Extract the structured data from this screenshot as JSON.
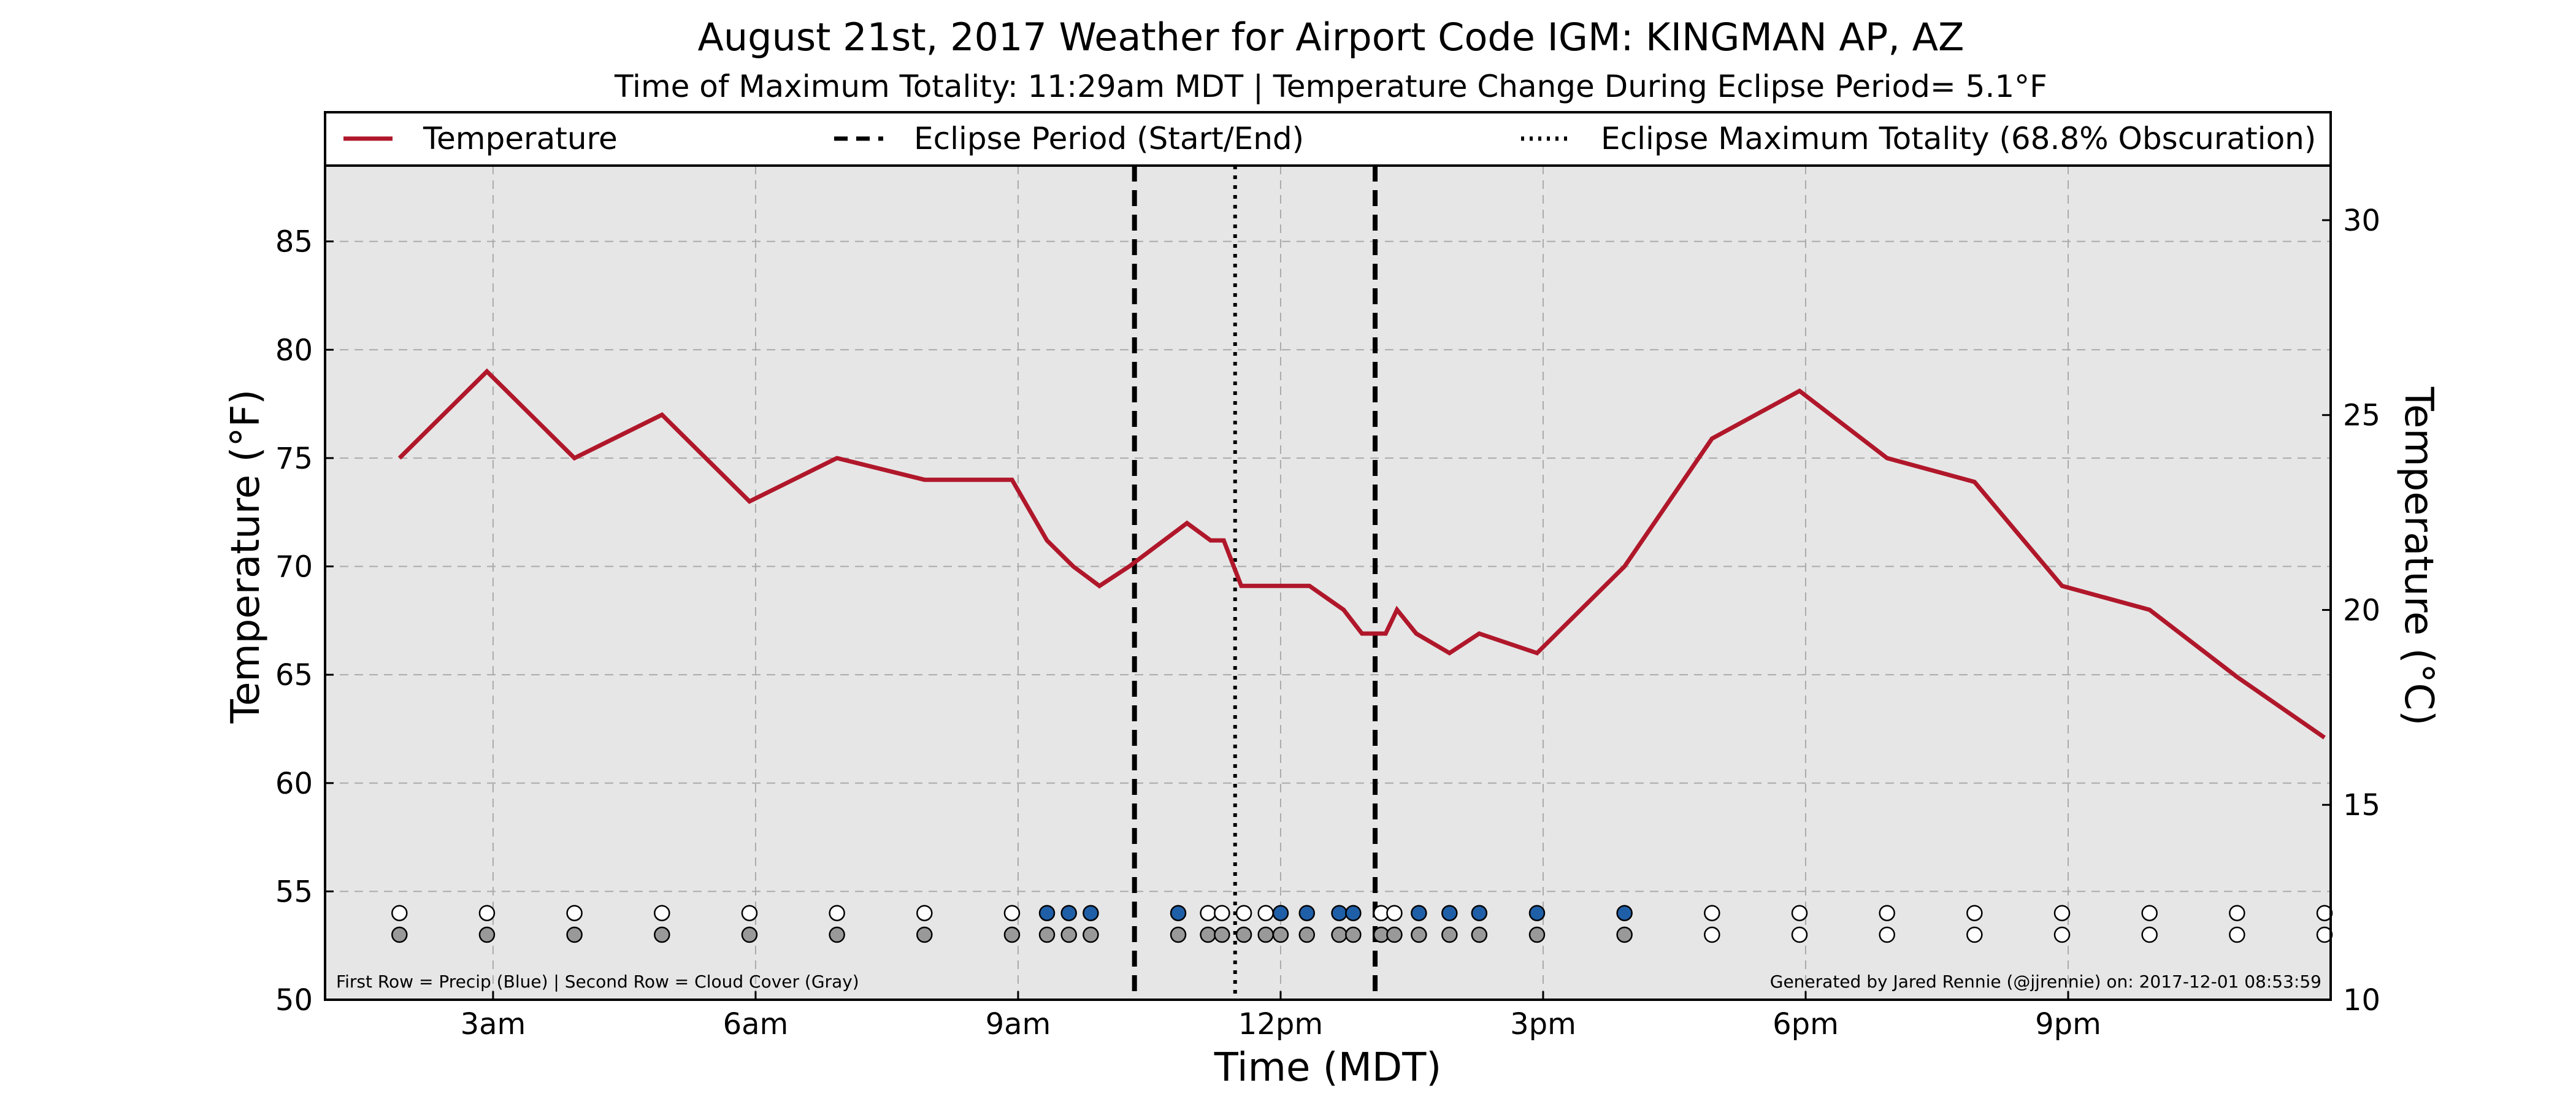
{
  "chart_data": {
    "type": "line",
    "title": "August 21st, 2017 Weather for Airport Code IGM: KINGMAN AP, AZ",
    "subtitle": "Time of Maximum Totality: 11:29am MDT | Temperature Change During Eclipse Period= 5.1°F",
    "xlabel": "Time (MDT)",
    "ylabel": "Temperature (°F)",
    "ylabel_right": "Temperature (°C)",
    "x_unit": "hours after midnight MDT",
    "xlim": [
      1.08,
      24.0
    ],
    "ylim": [
      50,
      88.5
    ],
    "ylim_right_c": [
      10,
      31.4
    ],
    "x_ticks": [
      {
        "x": 3,
        "label": "3am"
      },
      {
        "x": 6,
        "label": "6am"
      },
      {
        "x": 9,
        "label": "9am"
      },
      {
        "x": 12,
        "label": "12pm"
      },
      {
        "x": 15,
        "label": "3pm"
      },
      {
        "x": 18,
        "label": "6pm"
      },
      {
        "x": 21,
        "label": "9pm"
      }
    ],
    "y_ticks": [
      50,
      55,
      60,
      65,
      70,
      75,
      80,
      85
    ],
    "y_ticks_right": [
      10,
      15,
      20,
      25,
      30
    ],
    "grid": true,
    "legend": {
      "placement": "top",
      "entries": [
        {
          "label": "Temperature",
          "style": "solid",
          "color": "#b0172a"
        },
        {
          "label": "Eclipse Period (Start/End)",
          "style": "dashed",
          "color": "#000000"
        },
        {
          "label": "Eclipse Maximum Totality (68.8% Obscuration)",
          "style": "dotted",
          "color": "#000000"
        }
      ]
    },
    "series": [
      {
        "name": "Temperature",
        "color": "#b0172a",
        "points": [
          [
            1.93,
            75
          ],
          [
            2.93,
            79
          ],
          [
            3.93,
            75
          ],
          [
            4.93,
            77
          ],
          [
            5.93,
            73
          ],
          [
            6.93,
            75
          ],
          [
            7.93,
            74
          ],
          [
            8.93,
            74
          ],
          [
            9.33,
            71.2
          ],
          [
            9.63,
            70
          ],
          [
            9.93,
            69.1
          ],
          [
            10.27,
            70
          ],
          [
            10.93,
            72
          ],
          [
            11.2,
            71.2
          ],
          [
            11.35,
            71.2
          ],
          [
            11.55,
            69.1
          ],
          [
            11.93,
            69.1
          ],
          [
            12.33,
            69.1
          ],
          [
            12.72,
            68
          ],
          [
            12.93,
            66.9
          ],
          [
            13.2,
            66.9
          ],
          [
            13.33,
            68
          ],
          [
            13.55,
            66.9
          ],
          [
            13.93,
            66
          ],
          [
            14.27,
            66.9
          ],
          [
            14.93,
            66
          ],
          [
            15.93,
            70
          ],
          [
            16.93,
            75.9
          ],
          [
            17.93,
            78.1
          ],
          [
            18.93,
            75
          ],
          [
            19.93,
            73.9
          ],
          [
            20.93,
            69.1
          ],
          [
            21.93,
            68
          ],
          [
            22.93,
            64.9
          ],
          [
            23.93,
            62.1
          ]
        ]
      }
    ],
    "vertical_lines": [
      {
        "x": 10.33,
        "style": "dashed",
        "meaning": "Eclipse Period (Start/End)"
      },
      {
        "x": 11.48,
        "style": "dotted",
        "meaning": "Eclipse Maximum Totality"
      },
      {
        "x": 13.08,
        "style": "dashed",
        "meaning": "Eclipse Period (Start/End)"
      }
    ],
    "precip_row": {
      "y": 54,
      "points": [
        {
          "x": 1.93,
          "precip": false
        },
        {
          "x": 2.93,
          "precip": false
        },
        {
          "x": 3.93,
          "precip": false
        },
        {
          "x": 4.93,
          "precip": false
        },
        {
          "x": 5.93,
          "precip": false
        },
        {
          "x": 6.93,
          "precip": false
        },
        {
          "x": 7.93,
          "precip": false
        },
        {
          "x": 8.93,
          "precip": false
        },
        {
          "x": 9.33,
          "precip": true
        },
        {
          "x": 9.58,
          "precip": true
        },
        {
          "x": 9.83,
          "precip": true
        },
        {
          "x": 10.83,
          "precip": true
        },
        {
          "x": 11.17,
          "precip": false
        },
        {
          "x": 11.33,
          "precip": false
        },
        {
          "x": 11.58,
          "precip": false
        },
        {
          "x": 11.83,
          "precip": false
        },
        {
          "x": 12.0,
          "precip": true
        },
        {
          "x": 12.3,
          "precip": true
        },
        {
          "x": 12.67,
          "precip": true
        },
        {
          "x": 12.83,
          "precip": true
        },
        {
          "x": 13.15,
          "precip": false
        },
        {
          "x": 13.3,
          "precip": false
        },
        {
          "x": 13.58,
          "precip": true
        },
        {
          "x": 13.93,
          "precip": true
        },
        {
          "x": 14.27,
          "precip": true
        },
        {
          "x": 14.93,
          "precip": true
        },
        {
          "x": 15.93,
          "precip": true
        },
        {
          "x": 16.93,
          "precip": false
        },
        {
          "x": 17.93,
          "precip": false
        },
        {
          "x": 18.93,
          "precip": false
        },
        {
          "x": 19.93,
          "precip": false
        },
        {
          "x": 20.93,
          "precip": false
        },
        {
          "x": 21.93,
          "precip": false
        },
        {
          "x": 22.93,
          "precip": false
        },
        {
          "x": 23.93,
          "precip": false
        }
      ]
    },
    "cloud_row": {
      "y": 53,
      "points": [
        {
          "x": 1.93,
          "cloud": true
        },
        {
          "x": 2.93,
          "cloud": true
        },
        {
          "x": 3.93,
          "cloud": true
        },
        {
          "x": 4.93,
          "cloud": true
        },
        {
          "x": 5.93,
          "cloud": true
        },
        {
          "x": 6.93,
          "cloud": true
        },
        {
          "x": 7.93,
          "cloud": true
        },
        {
          "x": 8.93,
          "cloud": true
        },
        {
          "x": 9.33,
          "cloud": true
        },
        {
          "x": 9.58,
          "cloud": true
        },
        {
          "x": 9.83,
          "cloud": true
        },
        {
          "x": 10.83,
          "cloud": true
        },
        {
          "x": 11.17,
          "cloud": true
        },
        {
          "x": 11.33,
          "cloud": true
        },
        {
          "x": 11.58,
          "cloud": true
        },
        {
          "x": 11.83,
          "cloud": true
        },
        {
          "x": 12.0,
          "cloud": true
        },
        {
          "x": 12.3,
          "cloud": true
        },
        {
          "x": 12.67,
          "cloud": true
        },
        {
          "x": 12.83,
          "cloud": true
        },
        {
          "x": 13.15,
          "cloud": true
        },
        {
          "x": 13.3,
          "cloud": true
        },
        {
          "x": 13.58,
          "cloud": true
        },
        {
          "x": 13.93,
          "cloud": true
        },
        {
          "x": 14.27,
          "cloud": true
        },
        {
          "x": 14.93,
          "cloud": true
        },
        {
          "x": 15.93,
          "cloud": true
        },
        {
          "x": 16.93,
          "cloud": false
        },
        {
          "x": 17.93,
          "cloud": false
        },
        {
          "x": 18.93,
          "cloud": false
        },
        {
          "x": 19.93,
          "cloud": false
        },
        {
          "x": 20.93,
          "cloud": false
        },
        {
          "x": 21.93,
          "cloud": false
        },
        {
          "x": 22.93,
          "cloud": false
        },
        {
          "x": 23.93,
          "cloud": false
        }
      ]
    },
    "footnote_left": "First Row = Precip (Blue) | Second Row = Cloud Cover (Gray)",
    "footnote_right": "Generated by Jared Rennie (@jjrennie) on: 2017-12-01 08:53:59",
    "colors": {
      "plot_background": "#e6e6e6",
      "temperature": "#b0172a",
      "precip": "#1f5fa8",
      "cloud": "#999999",
      "empty_marker": "#ffffff",
      "grid": "#aaaaaa"
    }
  }
}
